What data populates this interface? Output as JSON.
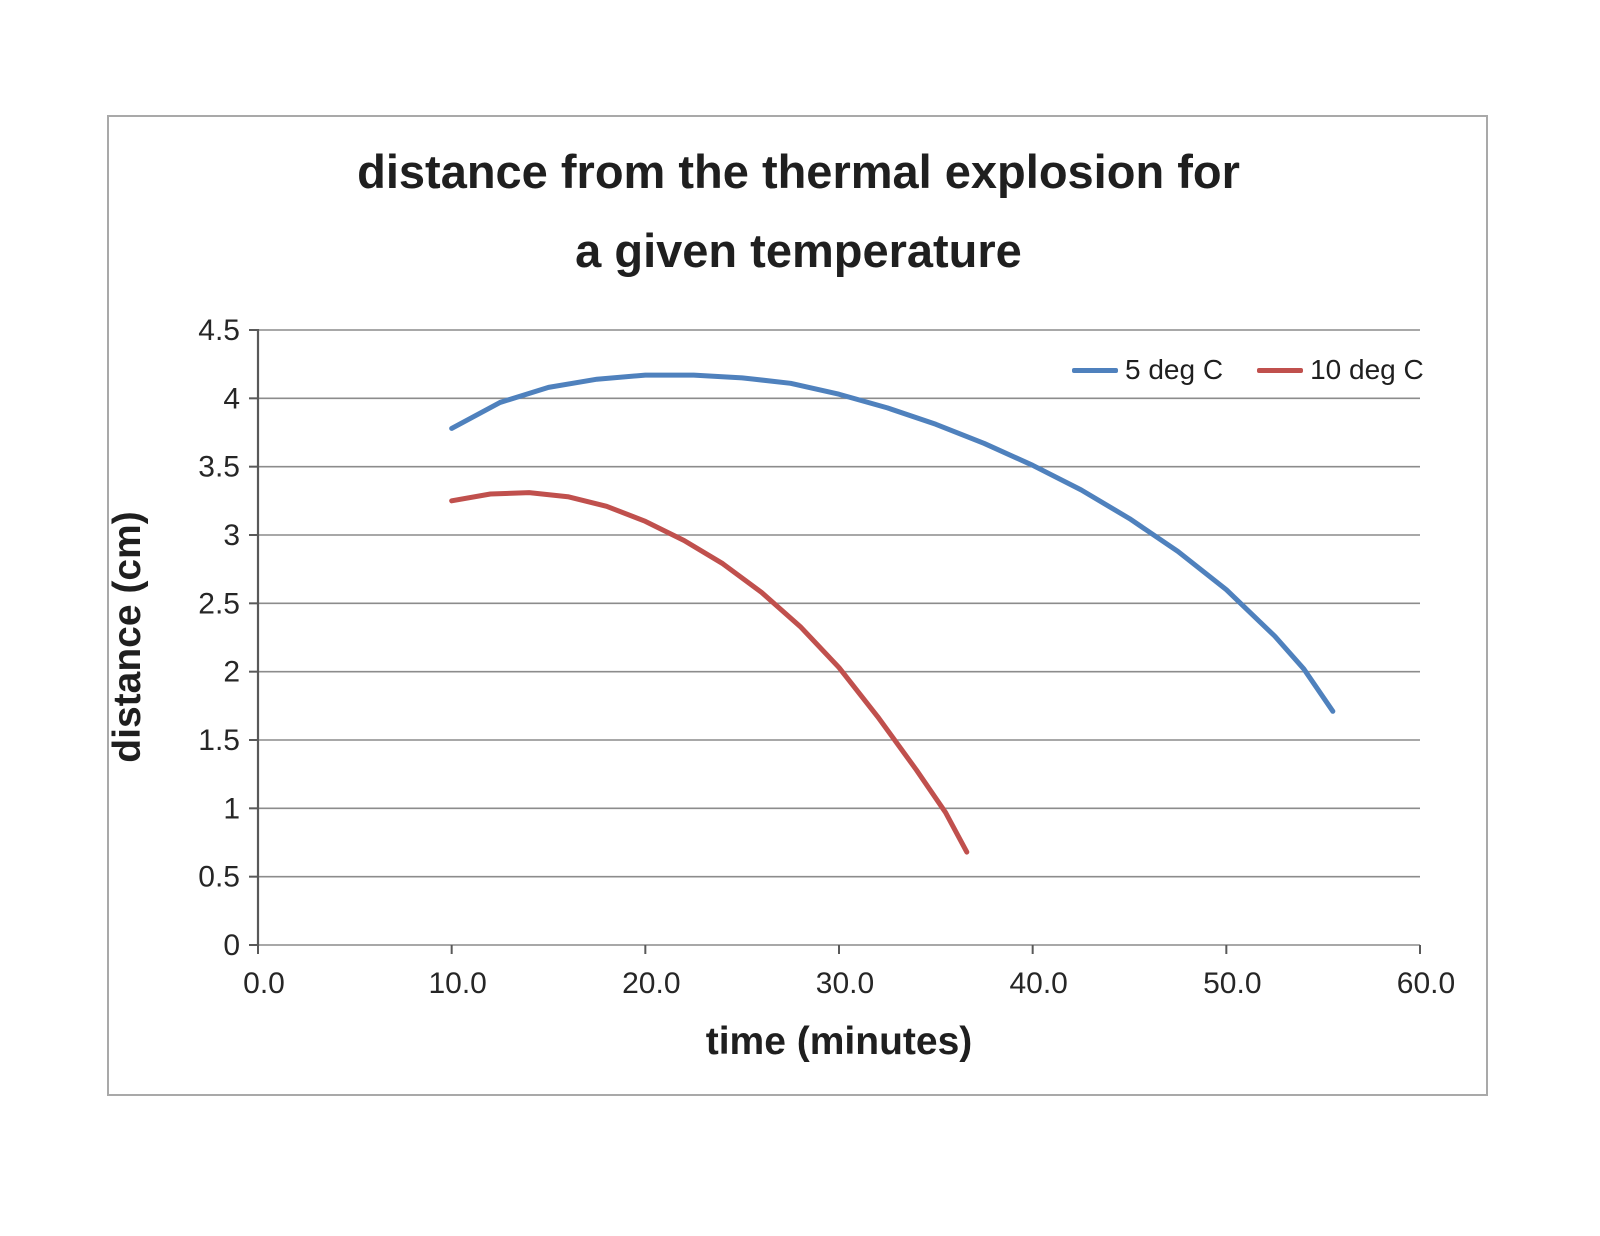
{
  "chart_data": {
    "type": "line",
    "title": "distance from the thermal explosion for a given temperature",
    "title_lines": [
      "distance from the thermal explosion for",
      "a given temperature"
    ],
    "xlabel": "time (minutes)",
    "ylabel": "distance (cm)",
    "xlim": [
      0,
      60
    ],
    "ylim": [
      0,
      4.5
    ],
    "grid": "horizontal",
    "legend_position": "top-right-inside",
    "x_ticks": [
      0,
      10,
      20,
      30,
      40,
      50,
      60
    ],
    "x_tick_labels": [
      "0.0",
      "10.0",
      "20.0",
      "30.0",
      "40.0",
      "50.0",
      "60.0"
    ],
    "y_ticks": [
      0,
      0.5,
      1,
      1.5,
      2,
      2.5,
      3,
      3.5,
      4,
      4.5
    ],
    "y_tick_labels": [
      "0",
      "0.5",
      "1",
      "1.5",
      "2",
      "2.5",
      "3",
      "3.5",
      "4",
      "4.5"
    ],
    "axis_color": "#595959",
    "gridline_color": "#8c8c8c",
    "series": [
      {
        "name": "5 deg C",
        "color": "#4f81bd",
        "points": [
          [
            10.0,
            3.78
          ],
          [
            12.5,
            3.97
          ],
          [
            15.0,
            4.08
          ],
          [
            17.5,
            4.14
          ],
          [
            20.0,
            4.17
          ],
          [
            22.5,
            4.17
          ],
          [
            25.0,
            4.15
          ],
          [
            27.5,
            4.11
          ],
          [
            30.0,
            4.03
          ],
          [
            32.5,
            3.93
          ],
          [
            35.0,
            3.81
          ],
          [
            37.5,
            3.67
          ],
          [
            40.0,
            3.51
          ],
          [
            42.5,
            3.33
          ],
          [
            45.0,
            3.12
          ],
          [
            47.5,
            2.88
          ],
          [
            50.0,
            2.6
          ],
          [
            52.5,
            2.26
          ],
          [
            54.0,
            2.02
          ],
          [
            55.5,
            1.71
          ]
        ]
      },
      {
        "name": "10 deg C",
        "color": "#c0504d",
        "points": [
          [
            10.0,
            3.25
          ],
          [
            12.0,
            3.3
          ],
          [
            14.0,
            3.31
          ],
          [
            16.0,
            3.28
          ],
          [
            18.0,
            3.21
          ],
          [
            20.0,
            3.1
          ],
          [
            22.0,
            2.96
          ],
          [
            24.0,
            2.79
          ],
          [
            26.0,
            2.58
          ],
          [
            28.0,
            2.33
          ],
          [
            30.0,
            2.03
          ],
          [
            32.0,
            1.67
          ],
          [
            34.0,
            1.28
          ],
          [
            35.5,
            0.97
          ],
          [
            36.6,
            0.68
          ]
        ]
      }
    ]
  }
}
